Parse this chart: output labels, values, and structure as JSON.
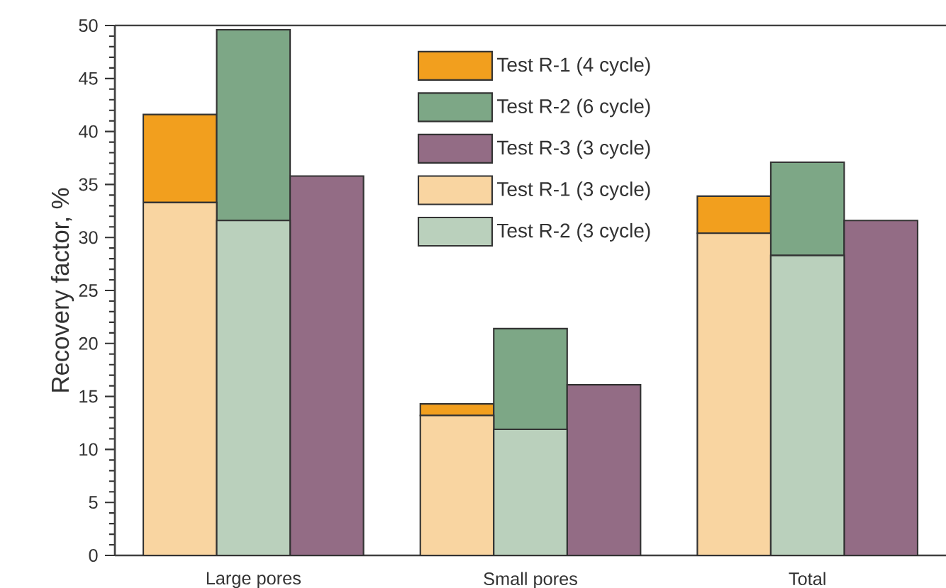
{
  "chart_data": {
    "type": "bar",
    "ylabel": "Recovery factor, %",
    "categories": [
      "Large pores",
      "Small pores",
      "Total"
    ],
    "series": [
      {
        "name": "Test R-1 (4 cycle)",
        "color": "#f29f1e",
        "values": [
          8.3,
          1.1,
          3.5
        ],
        "base": [
          33.3,
          13.2,
          30.4
        ]
      },
      {
        "name": "Test R-2 (6 cycle)",
        "color": "#7da786",
        "values": [
          18.0,
          9.5,
          8.8
        ],
        "base": [
          31.6,
          11.9,
          28.3
        ]
      },
      {
        "name": "Test R-3 (3 cycle)",
        "color": "#936c85",
        "values": [
          35.8,
          16.1,
          31.6
        ]
      },
      {
        "name": "Test R-1 (3 cycle)",
        "color": "#f9d5a1",
        "values": [
          33.3,
          13.2,
          30.4
        ]
      },
      {
        "name": "Test R-2 (3 cycle)",
        "color": "#bad0bc",
        "values": [
          31.6,
          11.9,
          28.3
        ]
      }
    ],
    "ylim": [
      0,
      50
    ],
    "yticks": [
      0,
      5,
      10,
      15,
      20,
      25,
      30,
      35,
      40,
      45,
      50
    ],
    "legend": "top right",
    "grid": false
  }
}
